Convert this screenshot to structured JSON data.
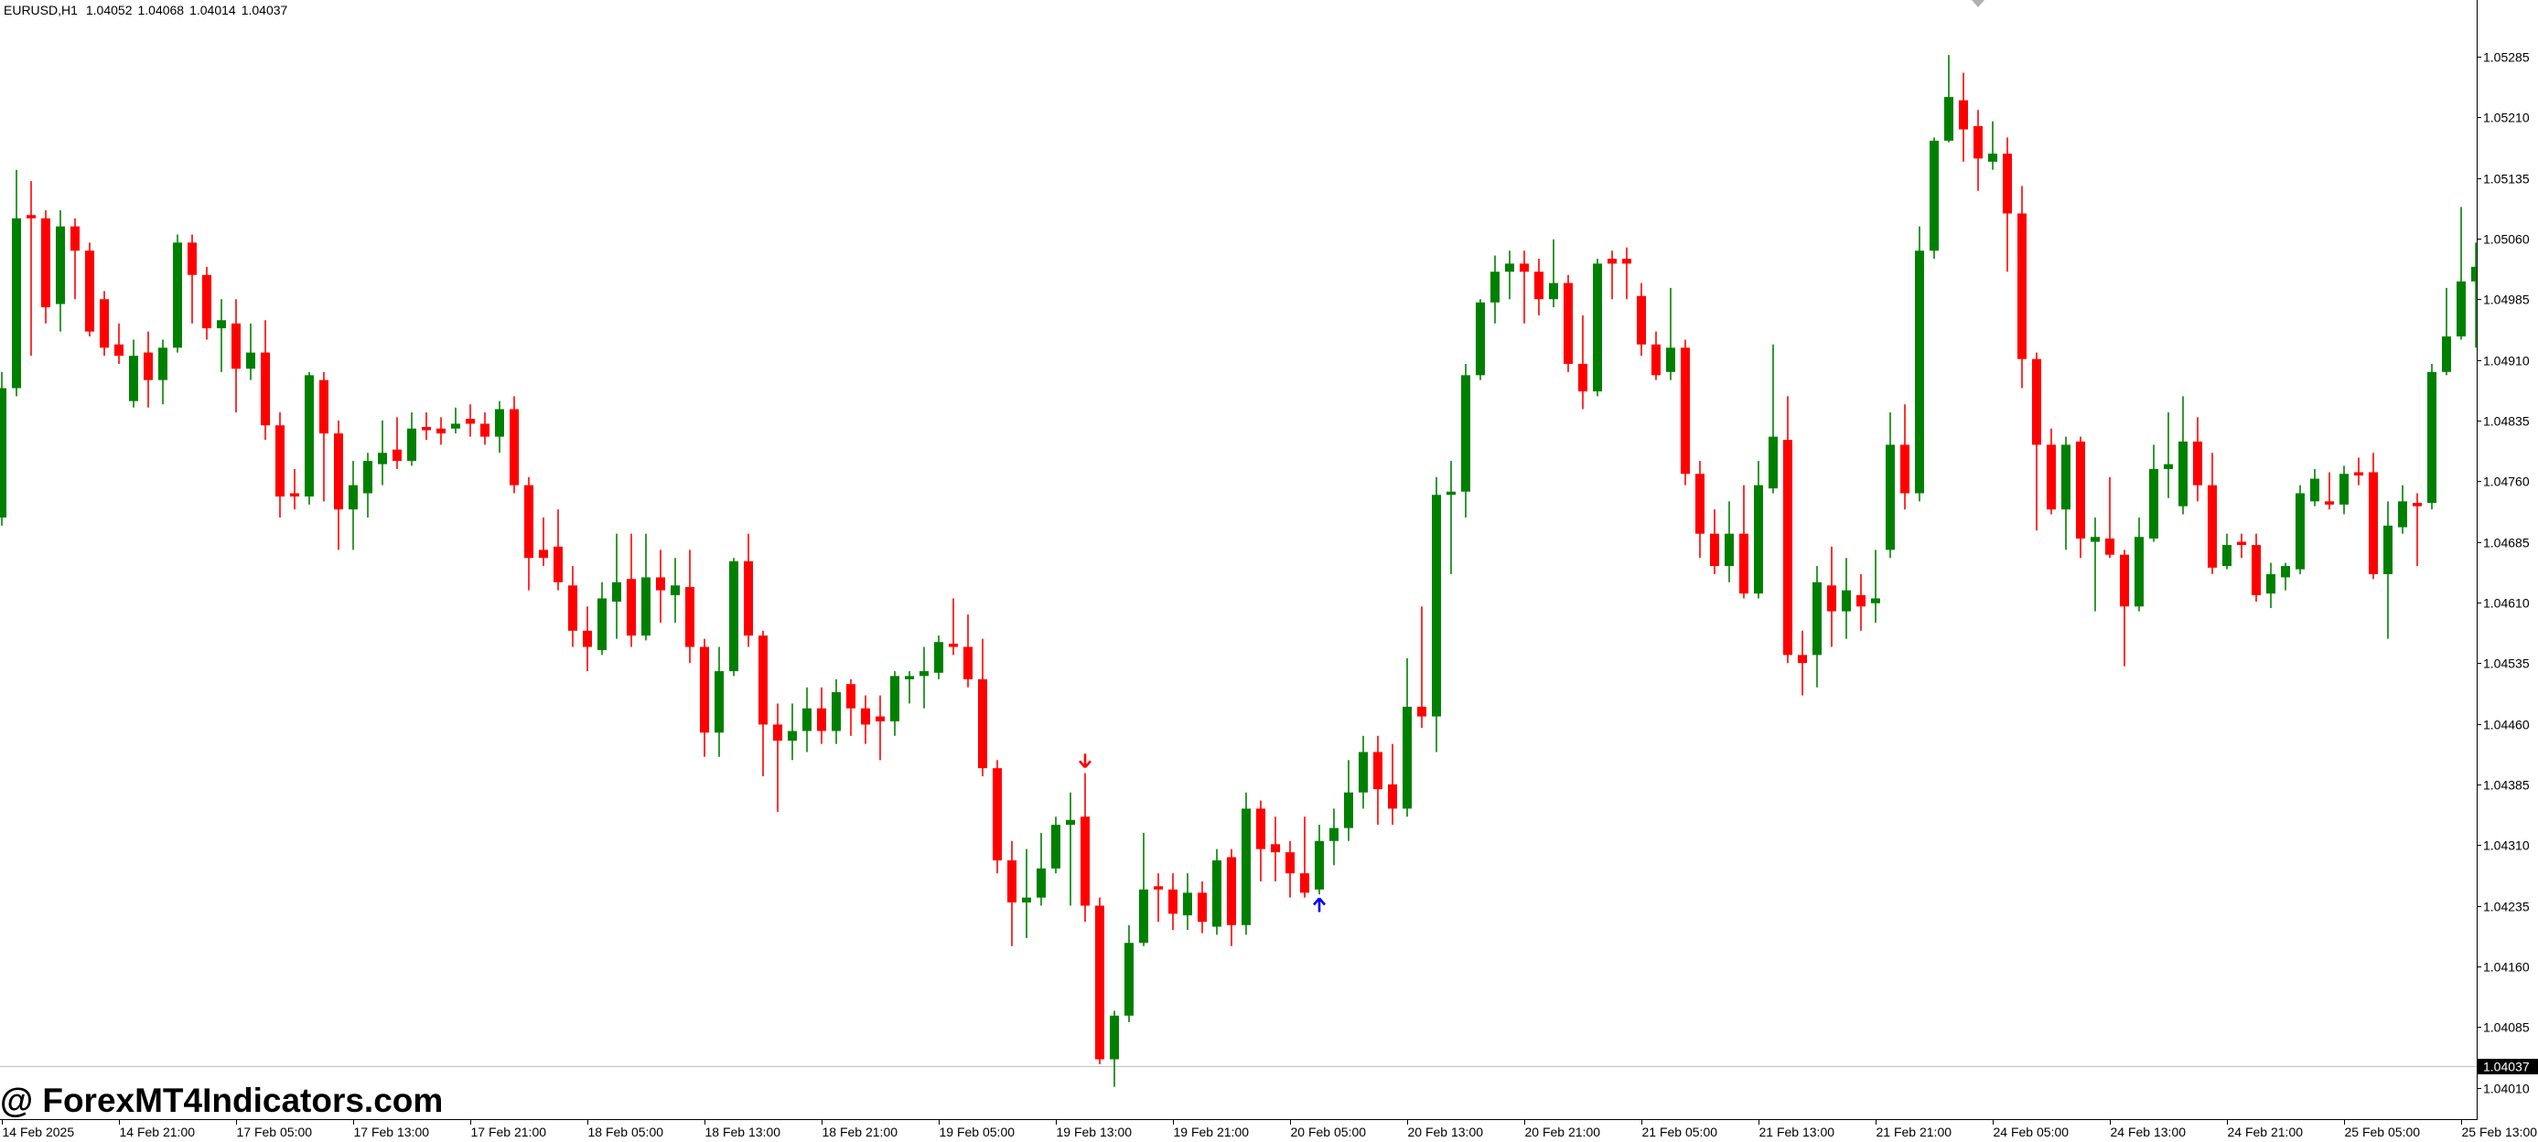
{
  "chart_data": {
    "type": "candlestick",
    "title": "EURUSD,H1",
    "quote": [
      1.04052,
      1.04068,
      1.04014,
      1.04037
    ],
    "watermark": "@ ForexMT4Indicators.com",
    "up_color": "#008000",
    "down_color": "#ff0000",
    "ylim": [
      1.03971,
      1.05355
    ],
    "yticks": [
      1.05285,
      {
        "value": 1.0521,
        "label": "1.05210"
      },
      1.05135,
      {
        "value": 1.0506,
        "label": "1.05060"
      },
      1.04985,
      {
        "value": 1.0491,
        "label": "1.04910"
      },
      1.04835,
      {
        "value": 1.0476,
        "label": "1.04760"
      },
      1.04685,
      {
        "value": 1.0461,
        "label": "1.04610"
      },
      1.04535,
      {
        "value": 1.0446,
        "label": "1.04460"
      },
      1.04385,
      {
        "value": 1.0431,
        "label": "1.04310"
      },
      1.04235,
      {
        "value": 1.0416,
        "label": "1.04160"
      },
      1.04085,
      {
        "value": 1.0401,
        "label": "1.04010"
      }
    ],
    "categories": [
      "14 Feb 2025",
      null,
      null,
      null,
      null,
      null,
      null,
      null,
      "14 Feb 21:00",
      null,
      null,
      null,
      null,
      null,
      null,
      null,
      "17 Feb 05:00",
      null,
      null,
      null,
      null,
      null,
      null,
      null,
      "17 Feb 13:00",
      null,
      null,
      null,
      null,
      null,
      null,
      null,
      "17 Feb 21:00",
      null,
      null,
      null,
      null,
      null,
      null,
      null,
      "18 Feb 05:00",
      null,
      null,
      null,
      null,
      null,
      null,
      null,
      "18 Feb 13:00",
      null,
      null,
      null,
      null,
      null,
      null,
      null,
      "18 Feb 21:00",
      null,
      null,
      null,
      null,
      null,
      null,
      null,
      "19 Feb 05:00",
      null,
      null,
      null,
      null,
      null,
      null,
      null,
      "19 Feb 13:00",
      null,
      null,
      null,
      null,
      null,
      null,
      null,
      "19 Feb 21:00",
      null,
      null,
      null,
      null,
      null,
      null,
      null,
      "20 Feb 05:00",
      null,
      null,
      null,
      null,
      null,
      null,
      null,
      "20 Feb 13:00",
      null,
      null,
      null,
      null,
      null,
      null,
      null,
      "20 Feb 21:00",
      null,
      null,
      null,
      null,
      null,
      null,
      null,
      "21 Feb 05:00",
      null,
      null,
      null,
      null,
      null,
      null,
      null,
      "21 Feb 13:00",
      null,
      null,
      null,
      null,
      null,
      null,
      null,
      "21 Feb 21:00",
      null,
      null,
      null,
      null,
      null,
      null,
      null,
      "24 Feb 05:00",
      null,
      null,
      null,
      null,
      null,
      null,
      null,
      "24 Feb 13:00",
      null,
      null,
      null,
      null,
      null,
      null,
      null,
      "24 Feb 21:00",
      null,
      null,
      null,
      null,
      null,
      null,
      null,
      "25 Feb 05:00",
      null,
      null,
      null,
      null,
      null,
      null,
      null,
      "25 Feb 13:00",
      null
    ],
    "open": [
      1.04715,
      1.04875,
      1.05089,
      1.05085,
      1.04979,
      1.05075,
      1.05045,
      1.04985,
      1.04929,
      1.04859,
      1.04919,
      1.04885,
      1.04925,
      1.05055,
      1.05015,
      1.04949,
      1.04955,
      1.04899,
      1.04919,
      1.04829,
      1.04745,
      1.04741,
      1.04885,
      1.04819,
      1.04725,
      1.04745,
      1.04781,
      1.04799,
      1.04785,
      1.04827,
      1.04825,
      1.04825,
      1.04837,
      1.04831,
      1.04815,
      1.04849,
      1.04755,
      1.04675,
      1.04679,
      1.04631,
      1.04575,
      1.04551,
      1.04611,
      1.04639,
      1.04569,
      1.04641,
      1.04619,
      1.04629,
      1.04555,
      1.04449,
      1.04525,
      1.04661,
      1.04569,
      1.04459,
      1.04439,
      1.04451,
      1.04479,
      1.04451,
      1.04509,
      1.04479,
      1.04469,
      1.04463,
      1.04515,
      1.04519,
      1.04523,
      1.04559,
      1.04555,
      1.04515,
      1.04405,
      1.04291,
      1.04239,
      1.04245,
      1.04281,
      1.04335,
      1.04345,
      1.04235,
      1.04045,
      1.04099,
      1.04189,
      1.04259,
      1.04255,
      1.04223,
      1.04251,
      1.04209,
      1.04295,
      1.04211,
      1.04355,
      1.04311,
      1.04301,
      1.04275,
      1.04255,
      1.04315,
      1.04331,
      1.04375,
      1.04425,
      1.04385,
      1.04355,
      1.04481,
      1.04469,
      1.04743,
      1.04747,
      1.04891,
      1.04981,
      1.05019,
      1.05029,
      1.05019,
      1.04985,
      1.05005,
      1.04905,
      1.04871,
      1.05035,
      1.05035,
      1.04989,
      1.04929,
      1.04895,
      1.04925,
      1.04769,
      1.04695,
      1.04655,
      1.04695,
      1.04621,
      1.04751,
      1.04811,
      1.04545,
      1.04545,
      1.04631,
      1.04599,
      1.04619,
      1.04609,
      1.04675,
      1.04805,
      1.04745,
      1.05045,
      1.05181,
      1.05231,
      1.05199,
      1.05155,
      1.05165,
      1.05091,
      1.04911,
      1.04805,
      1.04725,
      1.04809,
      1.04685,
      1.04689,
      1.04669,
      1.04605,
      1.04689,
      1.04775,
      1.04729,
      1.04809,
      1.04755,
      1.04655,
      1.04685,
      1.04681,
      1.04621,
      1.04641,
      1.04651,
      1.04735,
      1.04735,
      1.04731,
      1.04771,
      1.04771,
      1.04645,
      1.04703,
      1.04733,
      1.04733,
      1.04895,
      1.04939,
      1.05007
    ],
    "high": [
      1.04895,
      1.05145,
      1.05131,
      1.05095,
      1.05095,
      1.05085,
      1.05055,
      1.04995,
      1.04955,
      1.04935,
      1.04945,
      1.04935,
      1.05065,
      1.05065,
      1.05025,
      1.04985,
      1.04985,
      1.04955,
      1.04959,
      1.04845,
      1.04775,
      1.04895,
      1.04895,
      1.04835,
      1.04785,
      1.04795,
      1.04835,
      1.04839,
      1.04845,
      1.04845,
      1.04839,
      1.04851,
      1.04855,
      1.04845,
      1.04859,
      1.04865,
      1.04765,
      1.04715,
      1.04725,
      1.04655,
      1.04605,
      1.04635,
      1.04695,
      1.04695,
      1.04695,
      1.04675,
      1.04665,
      1.04675,
      1.04565,
      1.04555,
      1.04665,
      1.04695,
      1.04575,
      1.04485,
      1.04485,
      1.04505,
      1.04505,
      1.04515,
      1.04515,
      1.04495,
      1.04495,
      1.04525,
      1.04525,
      1.04555,
      1.04569,
      1.04615,
      1.04595,
      1.04565,
      1.04415,
      1.04315,
      1.04305,
      1.04325,
      1.04345,
      1.04375,
      1.04399,
      1.04245,
      1.04105,
      1.04211,
      1.04325,
      1.04275,
      1.04275,
      1.04275,
      1.04265,
      1.04305,
      1.04305,
      1.04375,
      1.04365,
      1.04345,
      1.04315,
      1.04345,
      1.04335,
      1.04355,
      1.04415,
      1.04445,
      1.04445,
      1.04435,
      1.04541,
      1.04605,
      1.04765,
      1.04785,
      1.04905,
      1.04985,
      1.05039,
      1.05045,
      1.05045,
      1.05035,
      1.05059,
      1.05015,
      1.04965,
      1.05035,
      1.05045,
      1.05049,
      1.05005,
      1.04945,
      1.04999,
      1.04935,
      1.04785,
      1.04725,
      1.04735,
      1.04755,
      1.04785,
      1.04929,
      1.04865,
      1.04575,
      1.04655,
      1.04679,
      1.04665,
      1.04645,
      1.04675,
      1.04845,
      1.04855,
      1.05075,
      1.05185,
      1.05287,
      1.05265,
      1.05219,
      1.05205,
      1.05185,
      1.05125,
      1.04919,
      1.04825,
      1.04815,
      1.04815,
      1.04715,
      1.04765,
      1.04675,
      1.04715,
      1.04805,
      1.04845,
      1.04865,
      1.04839,
      1.04795,
      1.04695,
      1.04695,
      1.04695,
      1.04659,
      1.04659,
      1.04755,
      1.04775,
      1.04771,
      1.04779,
      1.04789,
      1.04795,
      1.04735,
      1.04755,
      1.04745,
      1.04905,
      1.04999,
      1.05099,
      1.05055
    ],
    "low": [
      1.04705,
      1.04865,
      1.04915,
      1.04955,
      1.04945,
      1.04985,
      1.04939,
      1.04915,
      1.04905,
      1.04851,
      1.04851,
      1.04855,
      1.04919,
      1.04955,
      1.04935,
      1.04895,
      1.04845,
      1.04885,
      1.04811,
      1.04715,
      1.04725,
      1.04731,
      1.04735,
      1.04675,
      1.04675,
      1.04715,
      1.04755,
      1.04775,
      1.04779,
      1.04811,
      1.04805,
      1.04819,
      1.04815,
      1.04805,
      1.04795,
      1.04745,
      1.04625,
      1.04655,
      1.04625,
      1.04555,
      1.04525,
      1.04545,
      1.04565,
      1.04555,
      1.04563,
      1.04585,
      1.04585,
      1.04535,
      1.04419,
      1.04419,
      1.04519,
      1.04555,
      1.04395,
      1.04351,
      1.04415,
      1.04425,
      1.04435,
      1.04435,
      1.04445,
      1.04435,
      1.04415,
      1.04445,
      1.04485,
      1.04479,
      1.04515,
      1.04545,
      1.04505,
      1.04395,
      1.04275,
      1.04185,
      1.04195,
      1.04235,
      1.04275,
      1.04235,
      1.04215,
      1.04039,
      1.04011,
      1.04091,
      1.04185,
      1.04215,
      1.04205,
      1.04205,
      1.04201,
      1.04199,
      1.04185,
      1.04199,
      1.04265,
      1.04265,
      1.04245,
      1.04245,
      1.04249,
      1.04285,
      1.04315,
      1.04355,
      1.04335,
      1.04335,
      1.04345,
      1.04455,
      1.04425,
      1.04645,
      1.04715,
      1.04885,
      1.04955,
      1.04985,
      1.04955,
      1.04965,
      1.04975,
      1.04895,
      1.04849,
      1.04865,
      1.04985,
      1.04985,
      1.04915,
      1.04885,
      1.04885,
      1.04755,
      1.04665,
      1.04645,
      1.04635,
      1.04615,
      1.04615,
      1.04745,
      1.04535,
      1.04495,
      1.04505,
      1.04555,
      1.04565,
      1.04575,
      1.04585,
      1.04665,
      1.04725,
      1.04735,
      1.05035,
      1.05179,
      1.05155,
      1.05119,
      1.05145,
      1.05019,
      1.04875,
      1.04699,
      1.04719,
      1.04675,
      1.04665,
      1.04599,
      1.04665,
      1.04531,
      1.04599,
      1.04685,
      1.04739,
      1.04719,
      1.04735,
      1.04645,
      1.04651,
      1.04665,
      1.04611,
      1.04603,
      1.04625,
      1.04645,
      1.04729,
      1.04725,
      1.04719,
      1.04755,
      1.04639,
      1.04565,
      1.04695,
      1.04655,
      1.04725,
      1.04891,
      1.04935,
      1.04925
    ],
    "close": [
      1.04875,
      1.05085,
      1.05085,
      1.04975,
      1.05075,
      1.05045,
      1.04945,
      1.04925,
      1.04915,
      1.04915,
      1.04885,
      1.04925,
      1.05055,
      1.05015,
      1.04949,
      1.04959,
      1.04899,
      1.04919,
      1.04829,
      1.04741,
      1.04741,
      1.04891,
      1.04819,
      1.04725,
      1.04755,
      1.04785,
      1.04795,
      1.04785,
      1.04825,
      1.04823,
      1.04819,
      1.04831,
      1.04831,
      1.04815,
      1.04849,
      1.04755,
      1.04665,
      1.04665,
      1.04635,
      1.04575,
      1.04555,
      1.04615,
      1.04635,
      1.04569,
      1.04641,
      1.04625,
      1.04631,
      1.04555,
      1.04449,
      1.04525,
      1.04661,
      1.04569,
      1.04459,
      1.04439,
      1.04451,
      1.04479,
      1.04451,
      1.04499,
      1.04479,
      1.04459,
      1.04463,
      1.04519,
      1.04519,
      1.04525,
      1.04561,
      1.04555,
      1.04515,
      1.04405,
      1.04291,
      1.04239,
      1.04245,
      1.04281,
      1.04335,
      1.04341,
      1.04235,
      1.04045,
      1.04099,
      1.04189,
      1.04255,
      1.04255,
      1.04225,
      1.04251,
      1.04215,
      1.04291,
      1.04211,
      1.04355,
      1.04305,
      1.04301,
      1.04275,
      1.04251,
      1.04315,
      1.04331,
      1.04375,
      1.04425,
      1.04379,
      1.04355,
      1.04481,
      1.04469,
      1.04743,
      1.04747,
      1.04891,
      1.04981,
      1.05019,
      1.05029,
      1.05019,
      1.04985,
      1.05005,
      1.04905,
      1.04871,
      1.05029,
      1.05029,
      1.05029,
      1.04929,
      1.04891,
      1.04925,
      1.04769,
      1.04695,
      1.04655,
      1.04695,
      1.04621,
      1.04755,
      1.04815,
      1.04545,
      1.04535,
      1.04635,
      1.04599,
      1.04625,
      1.04605,
      1.04615,
      1.04805,
      1.04745,
      1.05045,
      1.05181,
      1.05235,
      1.05195,
      1.05159,
      1.05165,
      1.05091,
      1.04911,
      1.04805,
      1.04725,
      1.04805,
      1.04689,
      1.04691,
      1.04669,
      1.04605,
      1.04691,
      1.04775,
      1.04781,
      1.04809,
      1.04755,
      1.04653,
      1.04681,
      1.04681,
      1.04619,
      1.04645,
      1.04655,
      1.04745,
      1.04763,
      1.04731,
      1.04769,
      1.04767,
      1.04645,
      1.04705,
      1.04735,
      1.04729,
      1.04895,
      1.04939,
      1.05007,
      1.05025
    ],
    "signals": [
      {
        "index": 74,
        "price": 1.04415,
        "direction": "down",
        "color": "#ff0000"
      },
      {
        "index": 90,
        "price": 1.04235,
        "direction": "up",
        "color": "#0000ff"
      }
    ]
  }
}
